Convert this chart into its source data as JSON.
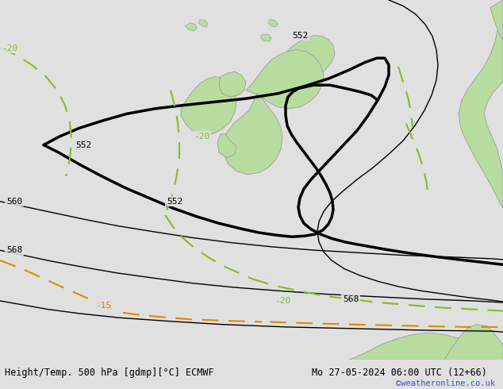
{
  "title_left": "Height/Temp. 500 hPa [gdmp][°C] ECMWF",
  "title_right": "Mo 27-05-2024 06:00 UTC (12+66)",
  "credit": "©weatheronline.co.uk",
  "bg_color": "#e0e0e0",
  "land_color": "#b8dca0",
  "border_color": "#909090",
  "fig_width": 6.34,
  "fig_height": 4.9,
  "dpi": 100,
  "green_color": "#88bb22",
  "orange_color": "#e08800"
}
